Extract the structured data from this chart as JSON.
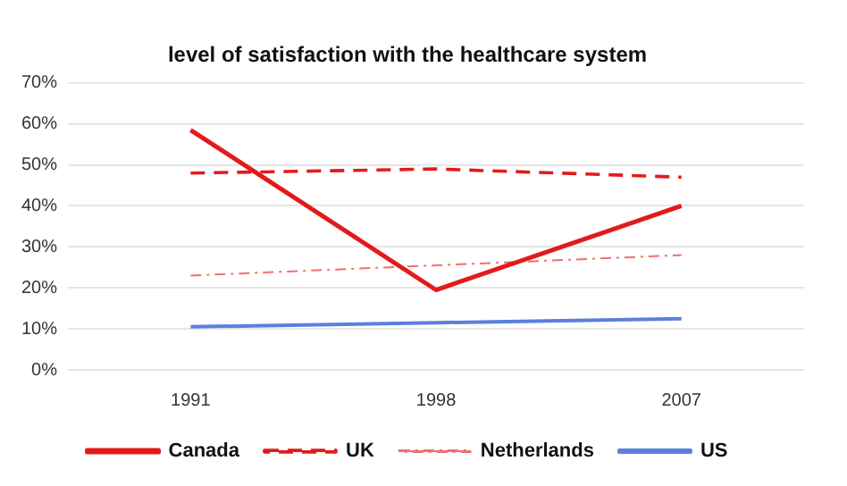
{
  "chart_data": {
    "type": "line",
    "title": "level of satisfaction with the healthcare system",
    "categories": [
      "1991",
      "1998",
      "2007"
    ],
    "series": [
      {
        "name": "Canada",
        "color": "#e31a1c",
        "values": [
          58.5,
          19.5,
          40
        ],
        "line_style": "solid"
      },
      {
        "name": "UK",
        "color": "#e31a1c",
        "values": [
          48,
          49,
          47
        ],
        "line_style": "dashed"
      },
      {
        "name": "Netherlands",
        "color": "#f07070",
        "values": [
          23,
          25.5,
          28
        ],
        "line_style": "dotted"
      },
      {
        "name": "US",
        "color": "#5b7fe0",
        "values": [
          10.5,
          11.5,
          12.5
        ],
        "line_style": "solid"
      }
    ],
    "ylim": [
      0,
      70
    ],
    "yticks": [
      {
        "value": 0,
        "label": "0%"
      },
      {
        "value": 10,
        "label": "10%"
      },
      {
        "value": 20,
        "label": "20%"
      },
      {
        "value": 30,
        "label": "30%"
      },
      {
        "value": 40,
        "label": "40%"
      },
      {
        "value": 50,
        "label": "50%"
      },
      {
        "value": 60,
        "label": "60%"
      },
      {
        "value": 70,
        "label": "70%"
      }
    ],
    "grid": "y",
    "legend": "bottom",
    "marker": "none"
  }
}
